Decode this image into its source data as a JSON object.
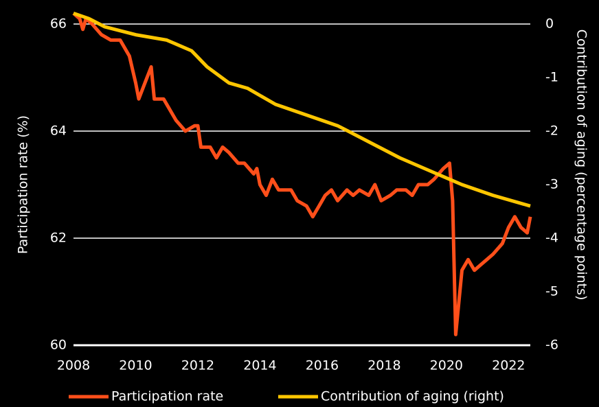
{
  "chart_data": {
    "type": "line",
    "y_label": "Participation rate (%)",
    "y2_label": "Contribution of aging (percentage points)",
    "xlim": [
      2008,
      2022.7
    ],
    "xticks": [
      2008,
      2010,
      2012,
      2014,
      2016,
      2018,
      2020,
      2022
    ],
    "ylim": [
      60,
      66.3
    ],
    "yticks": [
      60,
      62,
      64,
      66
    ],
    "y2lim": [
      -6,
      0.3
    ],
    "y2ticks": [
      -6,
      -5,
      -4,
      -3,
      -2,
      -1,
      0
    ],
    "grid": true,
    "legend": "bottom",
    "series": [
      {
        "name": "Participation rate",
        "color": "#ff4f1a",
        "x": [
          2008.0,
          2008.2,
          2008.3,
          2008.4,
          2008.6,
          2008.9,
          2009.2,
          2009.5,
          2009.8,
          2010.0,
          2010.1,
          2010.3,
          2010.5,
          2010.6,
          2010.9,
          2011.1,
          2011.3,
          2011.6,
          2011.9,
          2012.0,
          2012.1,
          2012.4,
          2012.6,
          2012.8,
          2013.0,
          2013.3,
          2013.5,
          2013.8,
          2013.9,
          2014.0,
          2014.2,
          2014.4,
          2014.6,
          2014.8,
          2015.0,
          2015.2,
          2015.5,
          2015.7,
          2015.9,
          2016.1,
          2016.3,
          2016.5,
          2016.8,
          2017.0,
          2017.2,
          2017.5,
          2017.7,
          2017.9,
          2018.2,
          2018.4,
          2018.7,
          2018.9,
          2019.1,
          2019.4,
          2019.6,
          2019.9,
          2020.1,
          2020.2,
          2020.3,
          2020.5,
          2020.7,
          2020.9,
          2021.1,
          2021.3,
          2021.5,
          2021.8,
          2022.0,
          2022.2,
          2022.4,
          2022.6,
          2022.7
        ],
        "values": [
          66.2,
          66.1,
          65.9,
          66.1,
          66.0,
          65.8,
          65.7,
          65.7,
          65.4,
          64.9,
          64.6,
          64.9,
          65.2,
          64.6,
          64.6,
          64.4,
          64.2,
          64.0,
          64.1,
          64.1,
          63.7,
          63.7,
          63.5,
          63.7,
          63.6,
          63.4,
          63.4,
          63.2,
          63.3,
          63.0,
          62.8,
          63.1,
          62.9,
          62.9,
          62.9,
          62.7,
          62.6,
          62.4,
          62.6,
          62.8,
          62.9,
          62.7,
          62.9,
          62.8,
          62.9,
          62.8,
          63.0,
          62.7,
          62.8,
          62.9,
          62.9,
          62.8,
          63.0,
          63.0,
          63.1,
          63.3,
          63.4,
          62.7,
          60.2,
          61.4,
          61.6,
          61.4,
          61.5,
          61.6,
          61.7,
          61.9,
          62.2,
          62.4,
          62.2,
          62.1,
          62.4
        ]
      },
      {
        "name": "Contribution of aging (right)",
        "color": "#ffc600",
        "axis": "y2",
        "x": [
          2008.0,
          2008.5,
          2009.0,
          2010.0,
          2011.0,
          2011.8,
          2012.3,
          2013.0,
          2013.6,
          2014.5,
          2015.5,
          2016.5,
          2017.5,
          2018.5,
          2019.5,
          2020.5,
          2021.5,
          2022.7
        ],
        "values": [
          0.2,
          0.1,
          -0.05,
          -0.2,
          -0.3,
          -0.5,
          -0.8,
          -1.1,
          -1.2,
          -1.5,
          -1.7,
          -1.9,
          -2.2,
          -2.5,
          -2.75,
          -3.0,
          -3.2,
          -3.4
        ]
      }
    ]
  }
}
